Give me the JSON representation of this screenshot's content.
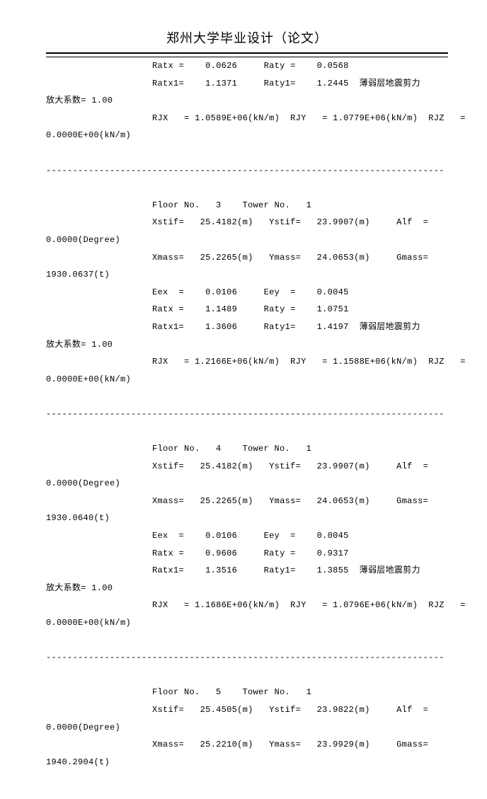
{
  "header_title": "郑州大学毕业设计（论文）",
  "intro": {
    "ratx_lbl": "Ratx =",
    "ratx_val": "0.0626",
    "raty_lbl": "Raty =",
    "raty_val": "0.0568",
    "ratx1_lbl": "Ratx1=",
    "ratx1_val": "1.1371",
    "raty1_lbl": "Raty1=",
    "raty1_val": "1.2445",
    "weak_layer": "薄弱层地震剪力",
    "amp_coeff": "放大系数= 1.00",
    "rjx_lbl": "RJX   =",
    "rjx_val": "1.0589E+06(kN/m)",
    "rjy_lbl": "RJY   =",
    "rjy_val": "1.0779E+06(kN/m)",
    "rjz_lbl": "RJZ   =",
    "rjz_cont": "0.0000E+00(kN/m)"
  },
  "sep": "---------------------------------------------------------------------------",
  "f3": {
    "header": "Floor No.   3    Tower No.   1",
    "xstif_lbl": "Xstif=",
    "xstif_val": "25.4182(m)",
    "ystif_lbl": "Ystif=",
    "ystif_val": "23.9907(m)",
    "alf_lbl": "Alf  =",
    "alf_cont": "0.0000(Degree)",
    "xmass_lbl": "Xmass=",
    "xmass_val": "25.2265(m)",
    "ymass_lbl": "Ymass=",
    "ymass_val": "24.0653(m)",
    "gmass_lbl": "Gmass=",
    "gmass_cont": "1930.0637(t)",
    "eex_lbl": "Eex  =",
    "eex_val": "0.0106",
    "eey_lbl": "Eey  =",
    "eey_val": "0.0045",
    "ratx_lbl": "Ratx =",
    "ratx_val": "1.1489",
    "raty_lbl": "Raty =",
    "raty_val": "1.0751",
    "ratx1_lbl": "Ratx1=",
    "ratx1_val": "1.3606",
    "raty1_lbl": "Raty1=",
    "raty1_val": "1.4197",
    "weak_layer": "薄弱层地震剪力",
    "amp_coeff": "放大系数= 1.00",
    "rjx_lbl": "RJX   =",
    "rjx_val": "1.2166E+06(kN/m)",
    "rjy_lbl": "RJY   =",
    "rjy_val": "1.1588E+06(kN/m)",
    "rjz_lbl": "RJZ   =",
    "rjz_cont": "0.0000E+00(kN/m)"
  },
  "f4": {
    "header": "Floor No.   4    Tower No.   1",
    "xstif_lbl": "Xstif=",
    "xstif_val": "25.4182(m)",
    "ystif_lbl": "Ystif=",
    "ystif_val": "23.9907(m)",
    "alf_lbl": "Alf  =",
    "alf_cont": "0.0000(Degree)",
    "xmass_lbl": "Xmass=",
    "xmass_val": "25.2265(m)",
    "ymass_lbl": "Ymass=",
    "ymass_val": "24.0653(m)",
    "gmass_lbl": "Gmass=",
    "gmass_cont": "1930.0640(t)",
    "eex_lbl": "Eex  =",
    "eex_val": "0.0106",
    "eey_lbl": "Eey  =",
    "eey_val": "0.0045",
    "ratx_lbl": "Ratx =",
    "ratx_val": "0.9606",
    "raty_lbl": "Raty =",
    "raty_val": "0.9317",
    "ratx1_lbl": "Ratx1=",
    "ratx1_val": "1.3516",
    "raty1_lbl": "Raty1=",
    "raty1_val": "1.3855",
    "weak_layer": "薄弱层地震剪力",
    "amp_coeff": "放大系数= 1.00",
    "rjx_lbl": "RJX   =",
    "rjx_val": "1.1686E+06(kN/m)",
    "rjy_lbl": "RJY   =",
    "rjy_val": "1.0796E+06(kN/m)",
    "rjz_lbl": "RJZ   =",
    "rjz_cont": "0.0000E+00(kN/m)"
  },
  "f5": {
    "header": "Floor No.   5    Tower No.   1",
    "xstif_lbl": "Xstif=",
    "xstif_val": "25.4505(m)",
    "ystif_lbl": "Ystif=",
    "ystif_val": "23.9822(m)",
    "alf_lbl": "Alf  =",
    "alf_cont": "0.0000(Degree)",
    "xmass_lbl": "Xmass=",
    "xmass_val": "25.2210(m)",
    "ymass_lbl": "Ymass=",
    "ymass_val": "23.9929(m)",
    "gmass_lbl": "Gmass=",
    "gmass_cont": "1940.2904(t)"
  }
}
